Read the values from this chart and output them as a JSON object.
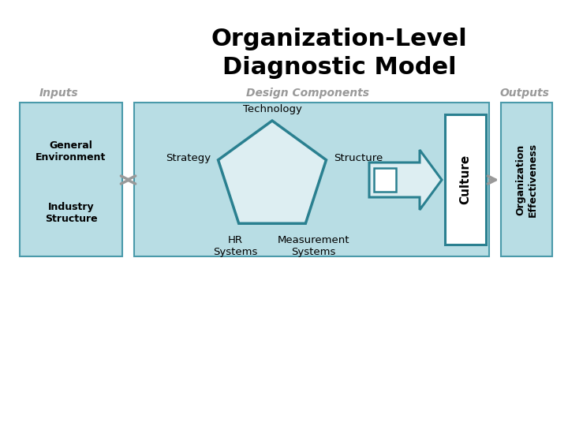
{
  "title_line1": "Organization-Level",
  "title_line2": "Diagnostic Model",
  "title_fontsize": 22,
  "title_fontweight": "bold",
  "label_inputs": "Inputs",
  "label_outputs": "Outputs",
  "label_design": "Design Components",
  "label_general_env": "General\nEnvironment",
  "label_industry": "Industry\nStructure",
  "label_org_eff": "Organization\nEffectiveness",
  "label_technology": "Technology",
  "label_strategy": "Strategy",
  "label_structure": "Structure",
  "label_hr": "HR\nSystems",
  "label_measurement": "Measurement\nSystems",
  "label_culture": "Culture",
  "color_box_fill": "#b8dde4",
  "color_box_edge": "#4a9aaa",
  "color_pentagon_edge": "#2a8090",
  "color_pentagon_fill": "#ddeef2",
  "color_culture_fill": "#ffffff",
  "color_culture_edge": "#2a8090",
  "color_arrow_shape_fill": "#ddeef2",
  "color_arrow_shape_edge": "#2a8090",
  "color_gray_arrow": "#999999",
  "color_label": "#999999",
  "color_text": "#000000",
  "bg_color": "#ffffff"
}
